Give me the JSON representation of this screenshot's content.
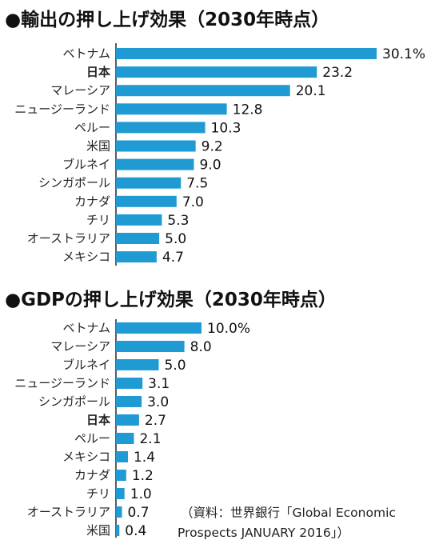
{
  "title_prefix_glyph": "●",
  "source_line1": "（資料：世界銀行「Global Economic",
  "source_line2": "Prospects JANUARY 2016」）",
  "colors": {
    "bar": "#1f9ad3",
    "axis": "#333333",
    "text": "#1a1a1a"
  },
  "chart_data": [
    {
      "type": "bar",
      "orientation": "horizontal",
      "title": "輸出の押し上げ効果（2030年時点）",
      "categories": [
        "ベトナム",
        "日本",
        "マレーシア",
        "ニュージーランド",
        "ペルー",
        "米国",
        "ブルネイ",
        "シンガポール",
        "カナダ",
        "チリ",
        "オーストラリア",
        "メキシコ"
      ],
      "values": [
        30.1,
        23.2,
        20.1,
        12.8,
        10.3,
        9.2,
        9.0,
        7.5,
        7.0,
        5.3,
        5.0,
        4.7
      ],
      "value_labels": [
        "30.1%",
        "23.2",
        "20.1",
        "12.8",
        "10.3",
        "9.2",
        "9.0",
        "7.5",
        "7.0",
        "5.3",
        "5.0",
        "4.7"
      ],
      "highlight": "日本",
      "xlim": [
        0,
        30.1
      ]
    },
    {
      "type": "bar",
      "orientation": "horizontal",
      "title": "GDPの押し上げ効果（2030年時点）",
      "categories": [
        "ベトナム",
        "マレーシア",
        "ブルネイ",
        "ニュージーランド",
        "シンガポール",
        "日本",
        "ペルー",
        "メキシコ",
        "カナダ",
        "チリ",
        "オーストラリア",
        "米国"
      ],
      "values": [
        10.0,
        8.0,
        5.0,
        3.1,
        3.0,
        2.7,
        2.1,
        1.4,
        1.2,
        1.0,
        0.7,
        0.4
      ],
      "value_labels": [
        "10.0%",
        "8.0",
        "5.0",
        "3.1",
        "3.0",
        "2.7",
        "2.1",
        "1.4",
        "1.2",
        "1.0",
        "0.7",
        "0.4"
      ],
      "highlight": "日本",
      "xlim": [
        0,
        10.0
      ]
    }
  ]
}
